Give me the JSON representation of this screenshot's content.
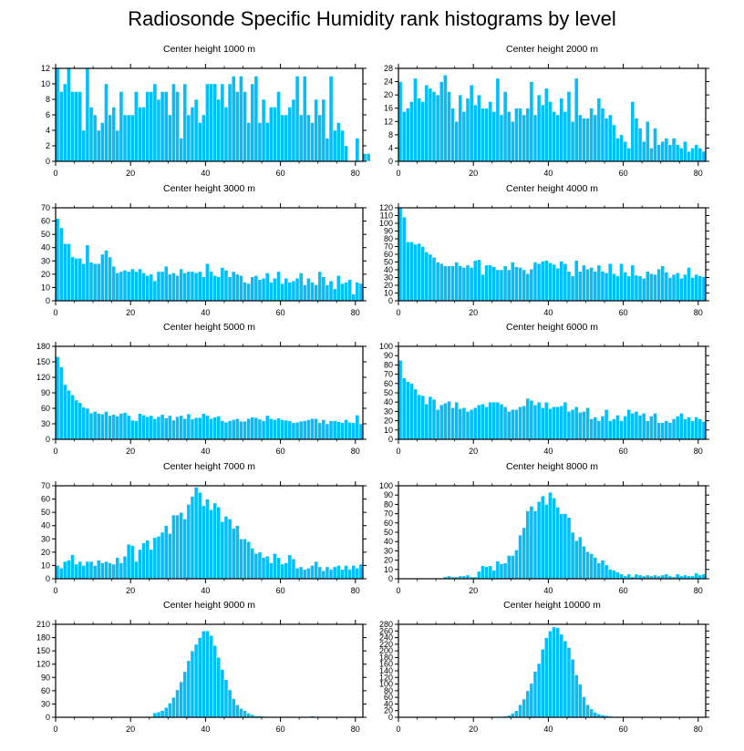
{
  "title": "Radiosonde Specific Humidity rank histograms by level",
  "colors": {
    "bar": "#00BFFF",
    "bar_edge": "#ffffff",
    "axis": "#000000"
  },
  "chart_data": [
    {
      "type": "bar",
      "title": "Center height 1000 m",
      "xlim": [
        0,
        82
      ],
      "ylim": [
        0,
        12
      ],
      "xticks": [
        0,
        20,
        40,
        60,
        80
      ],
      "yticks": [
        0,
        2,
        4,
        6,
        8,
        10,
        12
      ],
      "values": [
        12,
        9,
        10,
        12,
        9,
        9,
        9,
        4,
        12,
        7,
        6,
        4,
        5,
        10,
        6,
        7,
        4,
        9,
        6,
        6,
        6,
        9,
        7,
        7,
        9,
        9,
        10,
        8,
        9,
        9,
        6,
        10,
        9,
        3,
        10,
        6,
        7,
        8,
        5,
        6,
        10,
        10,
        10,
        8,
        10,
        7,
        10,
        11,
        9,
        11,
        9,
        5,
        10,
        11,
        5,
        8,
        5,
        7,
        7,
        9,
        6,
        6,
        7,
        8,
        11,
        6,
        11,
        6,
        5,
        8,
        6,
        8,
        3,
        11,
        4,
        5,
        4,
        2,
        0,
        0,
        3,
        0,
        1,
        1
      ]
    },
    {
      "type": "bar",
      "title": "Center height 2000 m",
      "xlim": [
        0,
        82
      ],
      "ylim": [
        0,
        28
      ],
      "xticks": [
        0,
        20,
        40,
        60,
        80
      ],
      "yticks": [
        0,
        4,
        8,
        12,
        16,
        20,
        24,
        28
      ],
      "values": [
        24,
        15,
        16,
        18,
        25,
        19,
        18,
        23,
        22,
        21,
        20,
        24,
        26,
        21,
        16,
        12,
        20,
        15,
        19,
        23,
        17,
        20,
        16,
        16,
        18,
        15,
        25,
        14,
        21,
        15,
        12,
        16,
        16,
        14,
        16,
        24,
        14,
        20,
        17,
        22,
        18,
        15,
        14,
        19,
        15,
        21,
        12,
        25,
        14,
        13,
        13,
        16,
        14,
        19,
        16,
        13,
        14,
        11,
        7,
        8,
        6,
        4,
        18,
        13,
        10,
        6,
        12,
        4,
        10,
        5,
        6,
        7,
        5,
        7,
        5,
        4,
        6,
        3,
        4,
        5,
        4,
        3
      ]
    },
    {
      "type": "bar",
      "title": "Center height 3000 m",
      "xlim": [
        0,
        82
      ],
      "ylim": [
        0,
        70
      ],
      "xticks": [
        0,
        20,
        40,
        60,
        80
      ],
      "yticks": [
        0,
        10,
        20,
        30,
        40,
        50,
        60,
        70
      ],
      "values": [
        62,
        55,
        43,
        43,
        33,
        32,
        32,
        28,
        42,
        29,
        28,
        28,
        35,
        38,
        33,
        26,
        21,
        22,
        23,
        22,
        24,
        22,
        24,
        21,
        19,
        20,
        15,
        22,
        22,
        26,
        20,
        21,
        19,
        24,
        21,
        22,
        22,
        21,
        22,
        18,
        28,
        22,
        19,
        18,
        25,
        23,
        18,
        22,
        20,
        19,
        14,
        13,
        18,
        19,
        16,
        17,
        21,
        14,
        17,
        22,
        13,
        17,
        14,
        15,
        17,
        21,
        12,
        17,
        14,
        12,
        22,
        18,
        12,
        15,
        9,
        19,
        13,
        14,
        16,
        5,
        14,
        13
      ]
    },
    {
      "type": "bar",
      "title": "Center height 4000 m",
      "xlim": [
        0,
        82
      ],
      "ylim": [
        0,
        120
      ],
      "xticks": [
        0,
        20,
        40,
        60,
        80
      ],
      "yticks": [
        0,
        10,
        20,
        30,
        40,
        50,
        60,
        70,
        80,
        90,
        100,
        110,
        120
      ],
      "values": [
        120,
        108,
        76,
        76,
        73,
        74,
        70,
        63,
        60,
        56,
        50,
        48,
        45,
        45,
        45,
        50,
        45,
        43,
        46,
        43,
        52,
        53,
        34,
        46,
        46,
        44,
        40,
        40,
        45,
        40,
        50,
        44,
        43,
        40,
        35,
        41,
        50,
        48,
        51,
        52,
        49,
        47,
        42,
        51,
        48,
        38,
        32,
        52,
        38,
        46,
        41,
        43,
        38,
        46,
        38,
        36,
        48,
        35,
        32,
        48,
        37,
        32,
        46,
        33,
        32,
        29,
        38,
        35,
        34,
        41,
        45,
        37,
        30,
        34,
        36,
        29,
        34,
        43,
        30,
        34,
        32,
        31
      ]
    },
    {
      "type": "bar",
      "title": "Center height 5000 m",
      "xlim": [
        0,
        82
      ],
      "ylim": [
        0,
        180
      ],
      "xticks": [
        0,
        20,
        40,
        60,
        80
      ],
      "yticks": [
        0,
        30,
        60,
        90,
        120,
        150,
        180
      ],
      "values": [
        160,
        140,
        106,
        95,
        86,
        76,
        71,
        62,
        60,
        51,
        54,
        50,
        49,
        54,
        46,
        48,
        45,
        50,
        52,
        46,
        37,
        36,
        50,
        47,
        44,
        46,
        40,
        44,
        48,
        41,
        46,
        37,
        44,
        46,
        40,
        49,
        39,
        42,
        42,
        50,
        46,
        40,
        43,
        45,
        36,
        33,
        36,
        38,
        40,
        35,
        35,
        40,
        43,
        42,
        39,
        36,
        46,
        40,
        38,
        41,
        38,
        37,
        36,
        32,
        33,
        35,
        36,
        38,
        40,
        40,
        32,
        38,
        30,
        36,
        36,
        34,
        32,
        38,
        33,
        32,
        47,
        30
      ]
    },
    {
      "type": "bar",
      "title": "Center height 6000 m",
      "xlim": [
        0,
        82
      ],
      "ylim": [
        0,
        100
      ],
      "xticks": [
        0,
        20,
        40,
        60,
        80
      ],
      "yticks": [
        0,
        10,
        20,
        30,
        40,
        50,
        60,
        70,
        80,
        90,
        100
      ],
      "values": [
        85,
        66,
        62,
        60,
        54,
        48,
        47,
        38,
        46,
        43,
        32,
        37,
        39,
        41,
        34,
        40,
        33,
        34,
        30,
        32,
        34,
        37,
        38,
        35,
        40,
        40,
        40,
        38,
        35,
        30,
        32,
        32,
        35,
        36,
        44,
        42,
        37,
        40,
        34,
        40,
        33,
        35,
        35,
        36,
        40,
        30,
        32,
        35,
        29,
        30,
        34,
        22,
        24,
        20,
        25,
        32,
        20,
        22,
        26,
        20,
        25,
        32,
        28,
        30,
        26,
        28,
        20,
        25,
        28,
        18,
        18,
        20,
        18,
        22,
        25,
        28,
        22,
        24,
        20,
        24,
        22,
        19
      ]
    },
    {
      "type": "bar",
      "title": "Center height 7000 m",
      "xlim": [
        0,
        82
      ],
      "ylim": [
        0,
        70
      ],
      "xticks": [
        0,
        20,
        40,
        60,
        80
      ],
      "yticks": [
        0,
        10,
        20,
        30,
        40,
        50,
        60,
        70
      ],
      "values": [
        10,
        8,
        13,
        14,
        18,
        11,
        13,
        10,
        13,
        13,
        10,
        14,
        12,
        13,
        12,
        11,
        16,
        12,
        17,
        26,
        25,
        13,
        22,
        27,
        29,
        22,
        31,
        32,
        35,
        40,
        34,
        48,
        48,
        50,
        45,
        56,
        62,
        69,
        65,
        55,
        60,
        52,
        57,
        54,
        43,
        47,
        45,
        38,
        40,
        30,
        30,
        28,
        23,
        19,
        20,
        16,
        17,
        12,
        19,
        16,
        11,
        12,
        18,
        15,
        8,
        9,
        7,
        8,
        10,
        13,
        9,
        6,
        9,
        7,
        9,
        10,
        7,
        10,
        7,
        10,
        8,
        11
      ]
    },
    {
      "type": "bar",
      "title": "Center height 8000 m",
      "xlim": [
        0,
        82
      ],
      "ylim": [
        0,
        100
      ],
      "xticks": [
        0,
        20,
        40,
        60,
        80
      ],
      "yticks": [
        0,
        10,
        20,
        30,
        40,
        50,
        60,
        70,
        80,
        90,
        100
      ],
      "values": [
        0,
        0,
        0,
        0,
        0,
        0,
        0,
        0,
        0,
        0,
        0,
        0,
        2,
        3,
        2,
        2,
        3,
        3,
        4,
        2,
        2,
        8,
        14,
        13,
        14,
        9,
        19,
        16,
        17,
        25,
        25,
        31,
        47,
        55,
        73,
        78,
        73,
        83,
        89,
        80,
        93,
        87,
        77,
        70,
        70,
        66,
        50,
        41,
        45,
        35,
        29,
        27,
        23,
        17,
        20,
        15,
        10,
        9,
        7,
        5,
        3,
        5,
        2,
        5,
        4,
        3,
        4,
        3,
        4,
        3,
        4,
        5,
        3,
        2,
        5,
        3,
        4,
        3,
        3,
        6,
        4,
        5
      ]
    },
    {
      "type": "bar",
      "title": "Center height 9000 m",
      "xlim": [
        0,
        82
      ],
      "ylim": [
        0,
        210
      ],
      "xticks": [
        0,
        20,
        40,
        60,
        80
      ],
      "yticks": [
        0,
        30,
        60,
        90,
        120,
        150,
        180,
        210
      ],
      "values": [
        0,
        0,
        0,
        0,
        0,
        0,
        0,
        0,
        0,
        0,
        0,
        0,
        0,
        0,
        0,
        0,
        0,
        0,
        0,
        0,
        0,
        0,
        0,
        0,
        0,
        0,
        10,
        12,
        15,
        22,
        32,
        45,
        62,
        80,
        103,
        128,
        150,
        165,
        180,
        195,
        195,
        185,
        162,
        135,
        108,
        85,
        62,
        42,
        28,
        20,
        15,
        9,
        6,
        3,
        3,
        2,
        1,
        0,
        0,
        0,
        0,
        0,
        0,
        0,
        1,
        0,
        0,
        0,
        3,
        0,
        0,
        0,
        0,
        0,
        0,
        0,
        0,
        0,
        0,
        0,
        0,
        0
      ]
    },
    {
      "type": "bar",
      "title": "Center height 10000 m",
      "xlim": [
        0,
        82
      ],
      "ylim": [
        0,
        280
      ],
      "xticks": [
        0,
        20,
        40,
        60,
        80
      ],
      "yticks": [
        0,
        20,
        40,
        60,
        80,
        100,
        120,
        140,
        160,
        180,
        200,
        220,
        240,
        260,
        280
      ],
      "values": [
        0,
        0,
        0,
        0,
        0,
        0,
        0,
        0,
        0,
        0,
        0,
        0,
        0,
        0,
        0,
        0,
        0,
        0,
        0,
        0,
        0,
        0,
        0,
        0,
        0,
        0,
        0,
        0,
        3,
        6,
        12,
        20,
        38,
        55,
        80,
        102,
        138,
        162,
        205,
        240,
        260,
        272,
        270,
        250,
        230,
        210,
        175,
        128,
        100,
        62,
        38,
        25,
        15,
        10,
        7,
        5,
        3,
        2,
        1,
        0,
        0,
        0,
        0,
        0,
        0,
        0,
        0,
        0,
        0,
        0,
        0,
        0,
        0,
        0,
        0,
        0,
        0,
        0,
        0,
        0,
        0,
        0
      ]
    }
  ]
}
